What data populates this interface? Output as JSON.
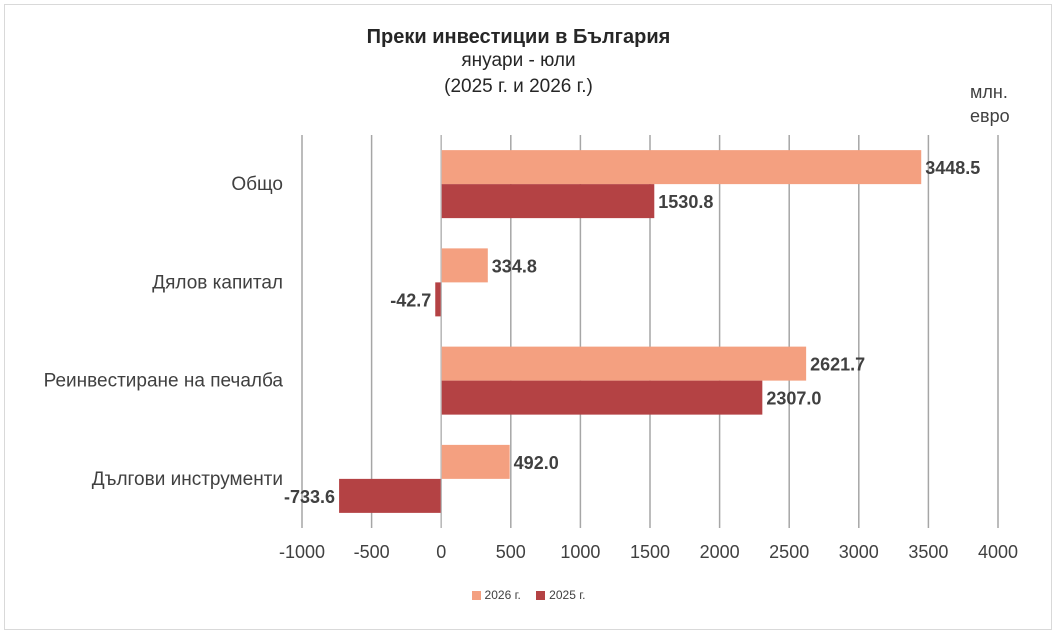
{
  "chart_data": {
    "type": "bar",
    "orientation": "horizontal",
    "title": "Преки инвестиции в България",
    "subtitle": "януари - юли",
    "subtitle2": "(2025 г. и 2026 г.)",
    "unit": [
      "млн.",
      "евро"
    ],
    "categories": [
      "Общо",
      "Дялов капитал",
      "Реинвестиране на печалба",
      "Дългови инструменти"
    ],
    "series": [
      {
        "name": "2026 г.",
        "color": "#f4a080",
        "values": [
          3448.5,
          334.8,
          2621.7,
          492.0
        ],
        "labels": [
          "3448.5",
          "334.8",
          "2621.7",
          "492.0"
        ]
      },
      {
        "name": "2025 г.",
        "color": "#b44244",
        "values": [
          1530.8,
          -42.7,
          2307.0,
          -733.6
        ],
        "labels": [
          "1530.8",
          "-42.7",
          "2307.0",
          "-733.6"
        ]
      }
    ],
    "xlim": [
      -1000,
      4000
    ],
    "xticks": [
      -1000,
      -500,
      0,
      500,
      1000,
      1500,
      2000,
      2500,
      3000,
      3500,
      4000
    ],
    "grid": true,
    "legend": "bottom"
  }
}
